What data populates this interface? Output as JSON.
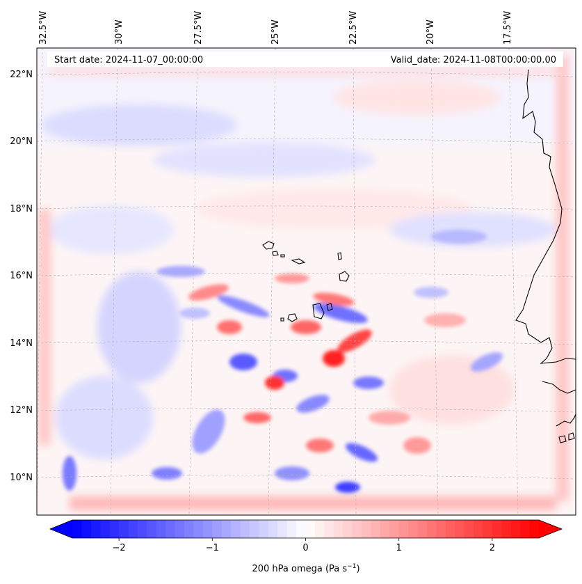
{
  "map": {
    "start_date": "Start date: 2024-11-07_00:00:00",
    "valid_date": "Valid_date: 2024-11-08T00:00:00.00",
    "lon_labels": [
      "32.5°W",
      "30°W",
      "27.5°W",
      "25°W",
      "22.5°W",
      "20°W",
      "17.5°W"
    ],
    "lat_labels": [
      "22°N",
      "20°N",
      "18°N",
      "16°N",
      "14°N",
      "12°N",
      "10°N"
    ],
    "extent": {
      "lon_min": -32.6,
      "lon_max": -15.7,
      "lat_min": 8.9,
      "lat_max": 22.8
    },
    "gridlines": true,
    "field": "200 hPa omega"
  },
  "colorbar": {
    "label": "200 hPa omega (Pa s",
    "label_sup": "−1",
    "label_end": ")",
    "ticks": [
      "−2",
      "−1",
      "0",
      "1",
      "2"
    ],
    "range": [
      -2.5,
      2.5
    ],
    "colormap": "bwr",
    "low_color": "#0000ff",
    "mid_color": "#ffffff",
    "high_color": "#ff0000",
    "extend": "both"
  },
  "colors": {
    "coastline": "#000000",
    "grid": "#b0b0b0"
  }
}
